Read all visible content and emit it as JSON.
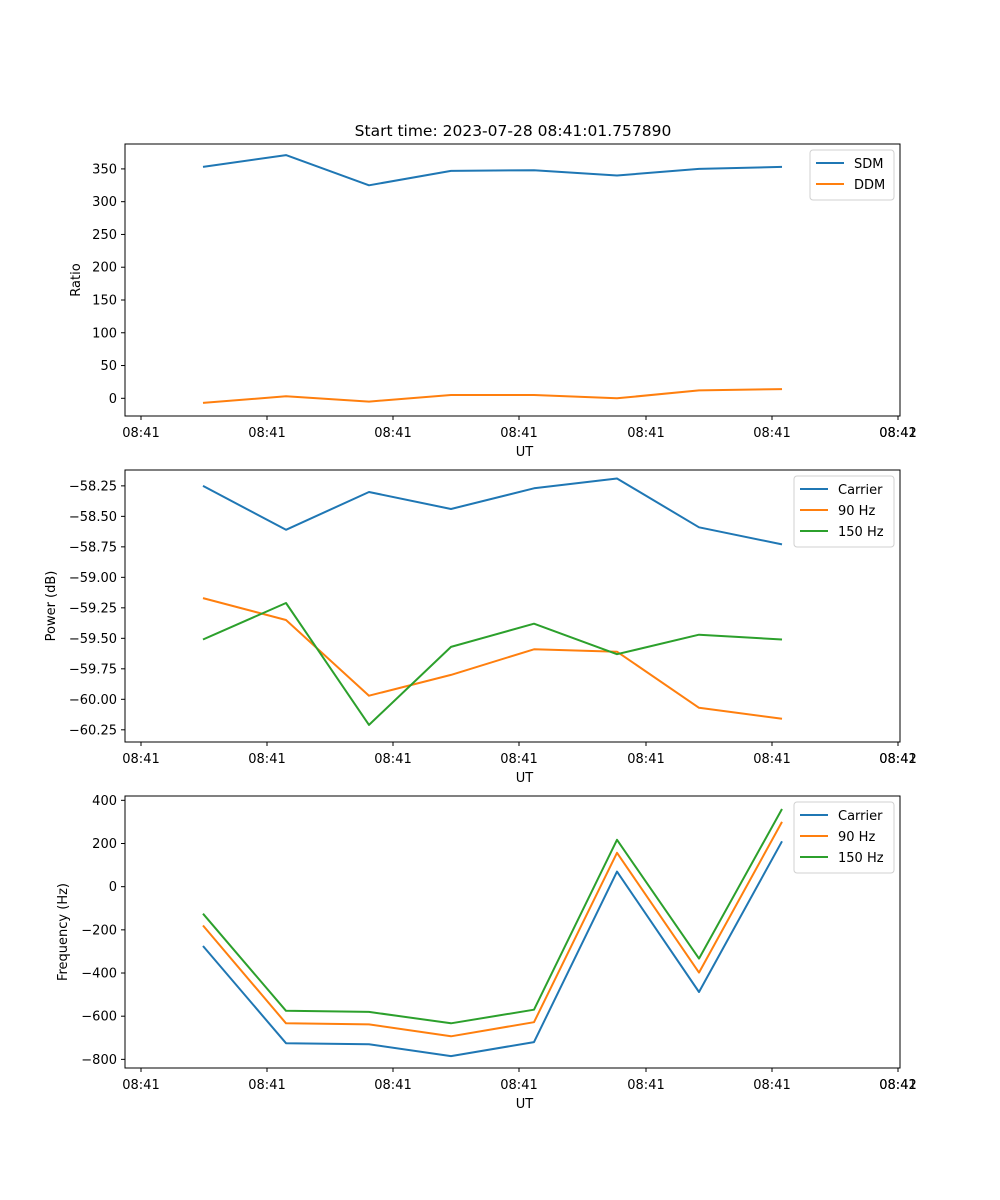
{
  "figure_title": "Start time: 2023-07-28 08:41:01.757890",
  "chart_data": [
    {
      "type": "line",
      "ylabel": "Ratio",
      "xlabel": "UT",
      "ylim": [
        -27,
        388
      ],
      "yticks": [
        0,
        50,
        100,
        150,
        200,
        250,
        300,
        350
      ],
      "xtick_labels": [
        "08:41",
        "08:41",
        "08:41",
        "08:41",
        "08:41",
        "08:41",
        "08:41",
        "08:42"
      ],
      "x": [
        1,
        2,
        3,
        4,
        5,
        6,
        7,
        8
      ],
      "legend": "top-right",
      "series": [
        {
          "name": "SDM",
          "color": "#1f77b4",
          "values": [
            353,
            371,
            325,
            347,
            348,
            340,
            350,
            353
          ]
        },
        {
          "name": "DDM",
          "color": "#ff7f0e",
          "values": [
            -7,
            3,
            -5,
            5,
            5,
            0,
            12,
            14
          ]
        }
      ]
    },
    {
      "type": "line",
      "ylabel": "Power (dB)",
      "xlabel": "UT",
      "ylim": [
        -60.35,
        -58.12
      ],
      "yticks": [
        -60.25,
        -60.0,
        -59.75,
        -59.5,
        -59.25,
        -59.0,
        -58.75,
        -58.5,
        -58.25
      ],
      "ytick_labels": [
        "−60.25",
        "−60.00",
        "−59.75",
        "−59.50",
        "−59.25",
        "−59.00",
        "−58.75",
        "−58.50",
        "−58.25"
      ],
      "xtick_labels": [
        "08:41",
        "08:41",
        "08:41",
        "08:41",
        "08:41",
        "08:41",
        "08:41",
        "08:42"
      ],
      "x": [
        1,
        2,
        3,
        4,
        5,
        6,
        7,
        8
      ],
      "legend": "top-right",
      "series": [
        {
          "name": "Carrier",
          "color": "#1f77b4",
          "values": [
            -58.25,
            -58.61,
            -58.3,
            -58.44,
            -58.27,
            -58.19,
            -58.59,
            -58.73
          ]
        },
        {
          "name": "90 Hz",
          "color": "#ff7f0e",
          "values": [
            -59.17,
            -59.35,
            -59.97,
            -59.8,
            -59.59,
            -59.61,
            -60.07,
            -60.16
          ]
        },
        {
          "name": "150 Hz",
          "color": "#2ca02c",
          "values": [
            -59.51,
            -59.21,
            -60.21,
            -59.57,
            -59.38,
            -59.63,
            -59.47,
            -59.51
          ]
        }
      ]
    },
    {
      "type": "line",
      "ylabel": "Frequency (Hz)",
      "xlabel": "UT",
      "ylim": [
        -840,
        420
      ],
      "yticks": [
        -800,
        -600,
        -400,
        -200,
        0,
        200,
        400
      ],
      "ytick_labels": [
        "−800",
        "−600",
        "−400",
        "−200",
        "0",
        "200",
        "400"
      ],
      "xtick_labels": [
        "08:41",
        "08:41",
        "08:41",
        "08:41",
        "08:41",
        "08:41",
        "08:41",
        "08:42"
      ],
      "x": [
        1,
        2,
        3,
        4,
        5,
        6,
        7,
        8
      ],
      "legend": "top-right",
      "series": [
        {
          "name": "Carrier",
          "color": "#1f77b4",
          "values": [
            -275,
            -725,
            -730,
            -785,
            -720,
            70,
            -488,
            210
          ]
        },
        {
          "name": "90 Hz",
          "color": "#ff7f0e",
          "values": [
            -180,
            -633,
            -638,
            -693,
            -628,
            157,
            -398,
            300
          ]
        },
        {
          "name": "150 Hz",
          "color": "#2ca02c",
          "values": [
            -125,
            -575,
            -580,
            -633,
            -570,
            217,
            -333,
            360
          ]
        }
      ]
    }
  ]
}
